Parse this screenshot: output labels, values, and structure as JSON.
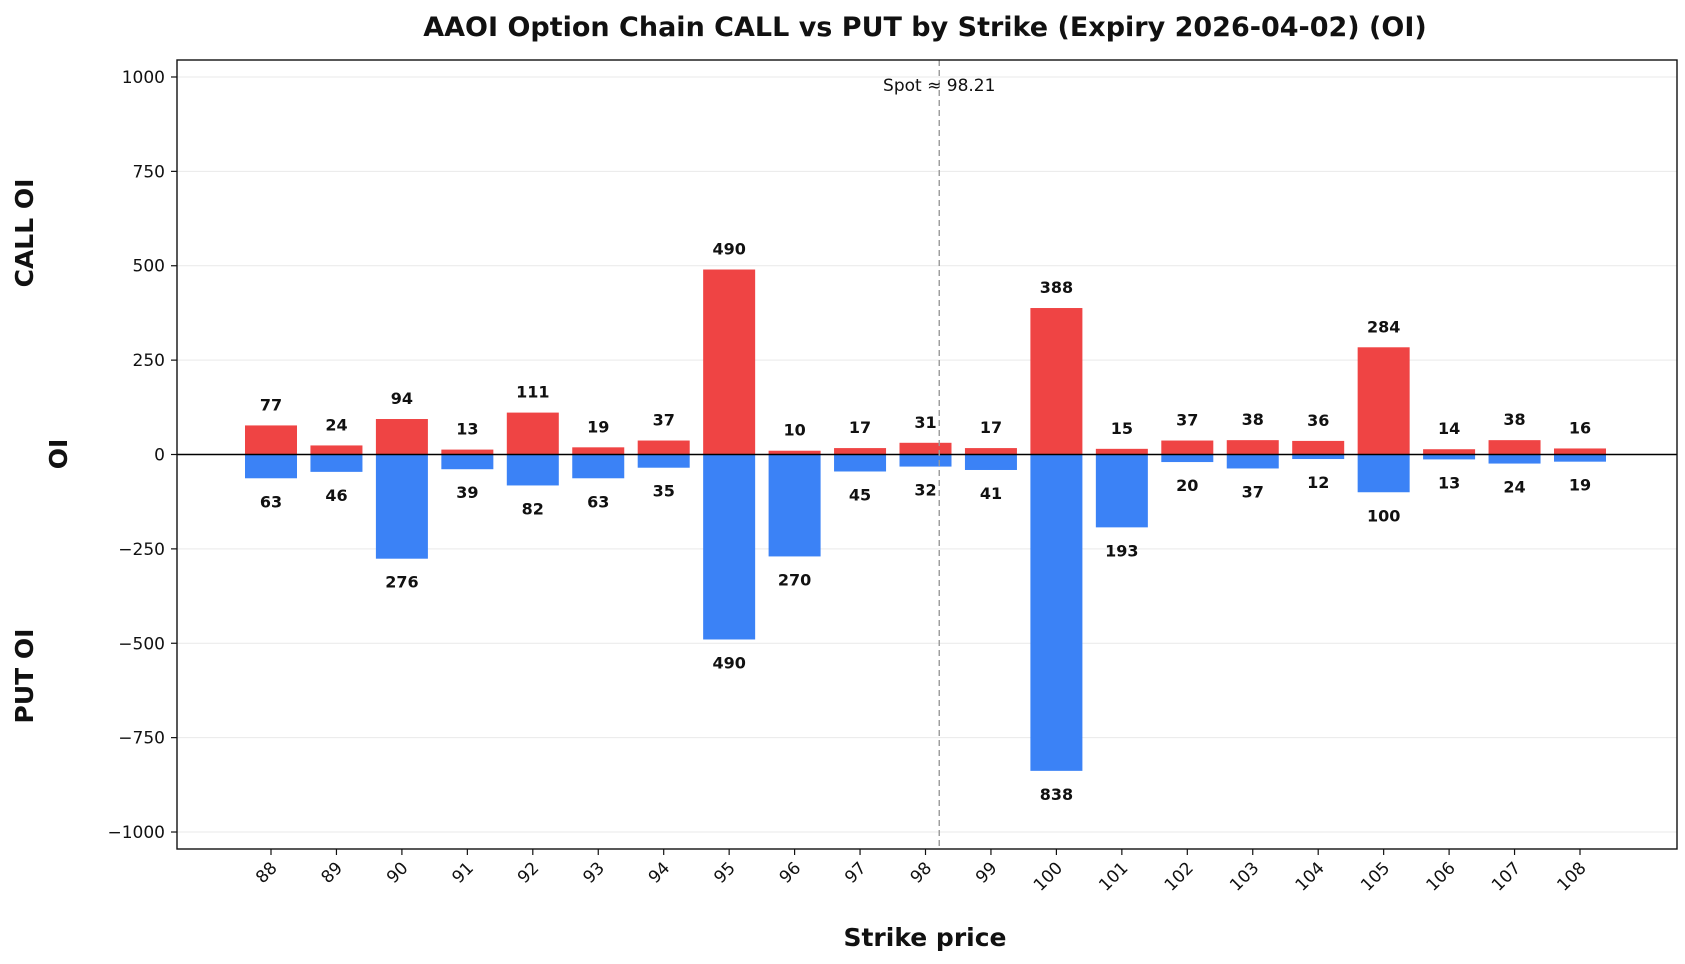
{
  "chart_data": {
    "type": "bar",
    "title": "AAOI Option Chain CALL vs PUT by Strike (Expiry 2026-04-02) (OI)",
    "xlabel": "Strike price",
    "ylabel": "OI",
    "upper_label": "CALL OI",
    "lower_label": "PUT OI",
    "ylim": [
      -1045,
      1045
    ],
    "yticks": [
      1000,
      750,
      500,
      250,
      0,
      -250,
      -500,
      -750,
      -1000
    ],
    "ytick_labels": [
      "1000",
      "750",
      "500",
      "250",
      "0",
      "−250",
      "−500",
      "−750",
      "−1000"
    ],
    "grid": "horizontal",
    "categories": [
      "88",
      "89",
      "90",
      "91",
      "92",
      "93",
      "94",
      "95",
      "96",
      "97",
      "98",
      "99",
      "100",
      "101",
      "102",
      "103",
      "104",
      "105",
      "106",
      "107",
      "108"
    ],
    "spot": {
      "value": 98.21,
      "label": "Spot ≈ 98.21"
    },
    "series": [
      {
        "name": "CALL OI",
        "color": "#ef4444",
        "direction": "up",
        "values": [
          77,
          24,
          94,
          13,
          111,
          19,
          37,
          490,
          10,
          17,
          31,
          17,
          388,
          15,
          37,
          38,
          36,
          284,
          14,
          38,
          16
        ]
      },
      {
        "name": "PUT OI",
        "color": "#3b82f6",
        "direction": "down",
        "values": [
          63,
          46,
          276,
          39,
          82,
          63,
          35,
          490,
          270,
          45,
          32,
          41,
          838,
          193,
          20,
          37,
          12,
          100,
          13,
          24,
          19
        ]
      }
    ]
  }
}
